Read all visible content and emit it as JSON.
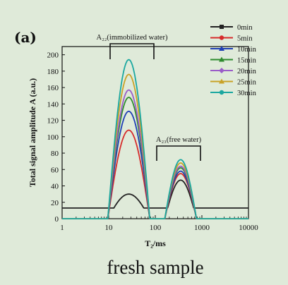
{
  "panel_label": "(a)",
  "caption": "fresh sample",
  "chart_data": {
    "type": "line",
    "xlabel": "T₂/ms",
    "ylabel": "Total signal amplitude A (a.u.)",
    "xscale": "log",
    "xlim": [
      1,
      10000
    ],
    "ylim": [
      0,
      210
    ],
    "xticks": [
      1,
      10,
      100,
      1000,
      10000
    ],
    "xtick_labels": [
      "1",
      "10",
      "100",
      "1000",
      "10000"
    ],
    "yticks": [
      0,
      20,
      40,
      60,
      80,
      100,
      120,
      140,
      160,
      180,
      200
    ],
    "ytick_labels": [
      "0",
      "20",
      "40",
      "60",
      "80",
      "100",
      "120",
      "140",
      "160",
      "180",
      "200"
    ],
    "legend_position": "top-right",
    "annotations": [
      {
        "text": "A₂₂(immobilized water)",
        "x_range": [
          10,
          100
        ]
      },
      {
        "text": "A₂₃(free water)",
        "x_range": [
          100,
          1000
        ]
      }
    ],
    "series": [
      {
        "name": "0min",
        "color": "#222222",
        "marker": "square",
        "peak1": {
          "x": 28,
          "y": 30
        },
        "valley": {
          "x": 100,
          "y": 13
        },
        "peak2": {
          "x": 350,
          "y": 47
        }
      },
      {
        "name": "5min",
        "color": "#d62b2b",
        "marker": "circle",
        "peak1": {
          "x": 26,
          "y": 108
        },
        "valley": {
          "x": 100,
          "y": 0
        },
        "peak2": {
          "x": 350,
          "y": 55
        }
      },
      {
        "name": "10min",
        "color": "#1f3fb5",
        "marker": "triangle",
        "peak1": {
          "x": 26,
          "y": 131
        },
        "valley": {
          "x": 100,
          "y": 0
        },
        "peak2": {
          "x": 350,
          "y": 58
        }
      },
      {
        "name": "15min",
        "color": "#2e8b2e",
        "marker": "triangle",
        "peak1": {
          "x": 26,
          "y": 148
        },
        "valley": {
          "x": 100,
          "y": 0
        },
        "peak2": {
          "x": 350,
          "y": 62
        }
      },
      {
        "name": "20min",
        "color": "#9a5cc8",
        "marker": "diamond",
        "peak1": {
          "x": 26,
          "y": 157
        },
        "valley": {
          "x": 100,
          "y": 0
        },
        "peak2": {
          "x": 350,
          "y": 64
        }
      },
      {
        "name": "25min",
        "color": "#c9a227",
        "marker": "triangle",
        "peak1": {
          "x": 26,
          "y": 176
        },
        "valley": {
          "x": 100,
          "y": 0
        },
        "peak2": {
          "x": 350,
          "y": 68
        }
      },
      {
        "name": "30min",
        "color": "#1aa7a0",
        "marker": "circle",
        "peak1": {
          "x": 26,
          "y": 194
        },
        "valley": {
          "x": 100,
          "y": 0
        },
        "peak2": {
          "x": 350,
          "y": 72
        }
      }
    ]
  }
}
